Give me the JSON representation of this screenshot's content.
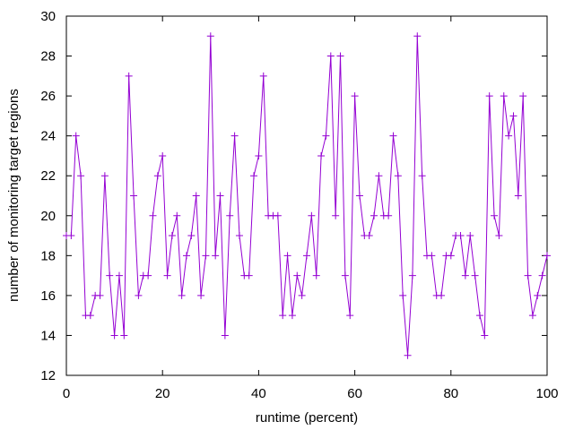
{
  "chart_data": {
    "type": "line",
    "title": "",
    "xlabel": "runtime (percent)",
    "ylabel": "number of monitoring target regions",
    "xlim": [
      0,
      100
    ],
    "ylim": [
      12,
      30
    ],
    "xticks": [
      0,
      20,
      40,
      60,
      80,
      100
    ],
    "yticks": [
      12,
      14,
      16,
      18,
      20,
      22,
      24,
      26,
      28,
      30
    ],
    "grid": false,
    "legend": "none",
    "series": [
      {
        "color": "#9400d3",
        "marker": "plus",
        "x": [
          0,
          1,
          2,
          3,
          4,
          5,
          6,
          7,
          8,
          9,
          10,
          11,
          12,
          13,
          14,
          15,
          16,
          17,
          18,
          19,
          20,
          21,
          22,
          23,
          24,
          25,
          26,
          27,
          28,
          29,
          30,
          31,
          32,
          33,
          34,
          35,
          36,
          37,
          38,
          39,
          40,
          41,
          42,
          43,
          44,
          45,
          46,
          47,
          48,
          49,
          50,
          51,
          52,
          53,
          54,
          55,
          56,
          57,
          58,
          59,
          60,
          61,
          62,
          63,
          64,
          65,
          66,
          67,
          68,
          69,
          70,
          71,
          72,
          73,
          74,
          75,
          76,
          77,
          78,
          79,
          80,
          81,
          82,
          83,
          84,
          85,
          86,
          87,
          88,
          89,
          90,
          91,
          92,
          93,
          94,
          95,
          96,
          97,
          98,
          99,
          100
        ],
        "y": [
          19,
          19,
          24,
          22,
          15,
          15,
          16,
          16,
          22,
          17,
          14,
          17,
          14,
          27,
          21,
          16,
          17,
          17,
          20,
          22,
          23,
          17,
          19,
          20,
          16,
          18,
          19,
          21,
          16,
          18,
          29,
          18,
          21,
          14,
          20,
          24,
          19,
          17,
          17,
          22,
          23,
          27,
          20,
          20,
          20,
          15,
          18,
          15,
          17,
          16,
          18,
          20,
          17,
          23,
          24,
          28,
          20,
          28,
          17,
          15,
          26,
          21,
          19,
          19,
          20,
          22,
          20,
          20,
          24,
          22,
          16,
          13,
          17,
          29,
          22,
          18,
          18,
          16,
          16,
          18,
          18,
          19,
          19,
          17,
          19,
          17,
          15,
          14,
          26,
          20,
          19,
          26,
          24,
          25,
          21,
          26,
          17,
          15,
          16,
          17,
          18
        ]
      }
    ]
  }
}
